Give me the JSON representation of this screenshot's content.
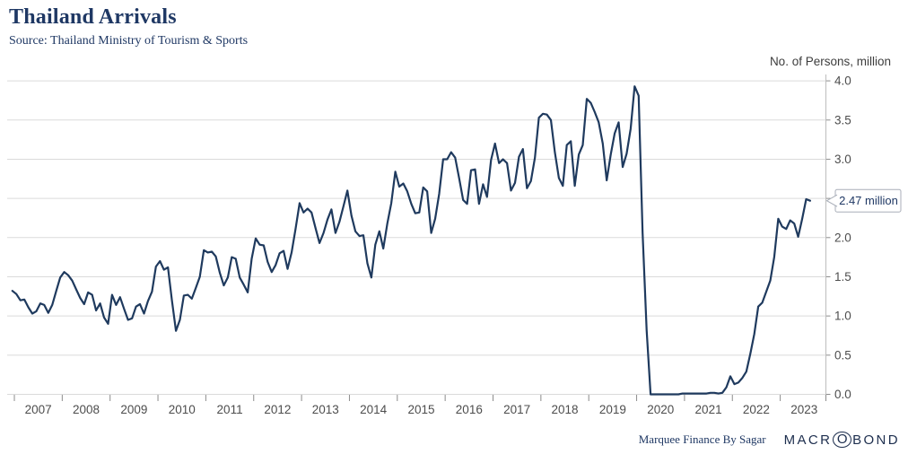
{
  "header": {
    "title": "Thailand Arrivals",
    "source": "Source: Thailand Ministry of Tourism & Sports"
  },
  "footer": {
    "attribution": "Marquee Finance By Sagar",
    "brand": "MACROBOND",
    "brand_pre": "MACR",
    "brand_o": "O",
    "brand_post": "BOND"
  },
  "colors": {
    "line": "#1f3a5e",
    "grid": "#dadada",
    "axis": "#bdbdbd",
    "tick": "#8c8c8c",
    "label": "#4d4d4d",
    "navy_text": "#1f3864",
    "callout_border": "#a8aeb8",
    "callout_bg": "#ffffff"
  },
  "chart_data": {
    "type": "line",
    "title": "Thailand Arrivals",
    "subtitle": "Source: Thailand Ministry of Tourism & Sports",
    "ylabel": "No. of Persons, million",
    "xlabel": "",
    "grid": "horizontal-only",
    "legend_position": "none",
    "ylim": [
      0.0,
      4.0
    ],
    "yticks": [
      0.0,
      0.5,
      1.0,
      1.5,
      2.0,
      2.5,
      3.0,
      3.5,
      4.0
    ],
    "ytick_replaced_by_callout": 2.5,
    "x_axis_years": [
      2007,
      2008,
      2009,
      2010,
      2011,
      2012,
      2013,
      2014,
      2015,
      2016,
      2017,
      2018,
      2019,
      2020,
      2021,
      2022,
      2023
    ],
    "x_range_years": [
      2006.92,
      2024.0
    ],
    "frequency": "monthly",
    "start": "2006-12",
    "end": "2023-08",
    "last_point_label": "2.47 million",
    "last_point_value": 2.47,
    "series": [
      {
        "name": "Thailand arrivals, no. of persons, million",
        "values": [
          1.32,
          1.28,
          1.2,
          1.21,
          1.11,
          1.03,
          1.06,
          1.16,
          1.14,
          1.04,
          1.14,
          1.32,
          1.49,
          1.56,
          1.52,
          1.45,
          1.34,
          1.23,
          1.15,
          1.3,
          1.27,
          1.07,
          1.16,
          0.98,
          0.9,
          1.27,
          1.14,
          1.24,
          1.09,
          0.95,
          0.97,
          1.12,
          1.15,
          1.03,
          1.19,
          1.31,
          1.63,
          1.7,
          1.59,
          1.62,
          1.2,
          0.81,
          0.95,
          1.26,
          1.27,
          1.22,
          1.36,
          1.5,
          1.84,
          1.81,
          1.82,
          1.76,
          1.55,
          1.39,
          1.49,
          1.75,
          1.73,
          1.49,
          1.4,
          1.3,
          1.73,
          1.99,
          1.91,
          1.9,
          1.69,
          1.56,
          1.65,
          1.8,
          1.83,
          1.6,
          1.81,
          2.11,
          2.44,
          2.32,
          2.37,
          2.32,
          2.12,
          1.93,
          2.06,
          2.23,
          2.36,
          2.06,
          2.2,
          2.4,
          2.6,
          2.28,
          2.08,
          2.02,
          2.03,
          1.67,
          1.49,
          1.91,
          2.08,
          1.86,
          2.18,
          2.44,
          2.84,
          2.65,
          2.69,
          2.59,
          2.43,
          2.31,
          2.32,
          2.64,
          2.59,
          2.06,
          2.24,
          2.56,
          3.0,
          3.0,
          3.09,
          3.02,
          2.76,
          2.48,
          2.43,
          2.86,
          2.87,
          2.43,
          2.68,
          2.52,
          2.99,
          3.2,
          2.95,
          3.0,
          2.95,
          2.6,
          2.7,
          3.03,
          3.13,
          2.63,
          2.72,
          3.02,
          3.53,
          3.58,
          3.57,
          3.5,
          3.09,
          2.76,
          2.66,
          3.18,
          3.23,
          2.66,
          3.06,
          3.18,
          3.77,
          3.72,
          3.6,
          3.47,
          3.2,
          2.73,
          3.06,
          3.33,
          3.47,
          2.9,
          3.07,
          3.39,
          3.93,
          3.81,
          2.06,
          0.82,
          0.0,
          0.0,
          0.0,
          0.0,
          0.0,
          0.0,
          0.0,
          0.0,
          0.01,
          0.01,
          0.01,
          0.01,
          0.01,
          0.01,
          0.01,
          0.02,
          0.02,
          0.01,
          0.02,
          0.09,
          0.23,
          0.13,
          0.15,
          0.21,
          0.29,
          0.52,
          0.77,
          1.12,
          1.17,
          1.31,
          1.45,
          1.75,
          2.24,
          2.14,
          2.11,
          2.22,
          2.18,
          2.01,
          2.24,
          2.49,
          2.47
        ]
      }
    ]
  }
}
